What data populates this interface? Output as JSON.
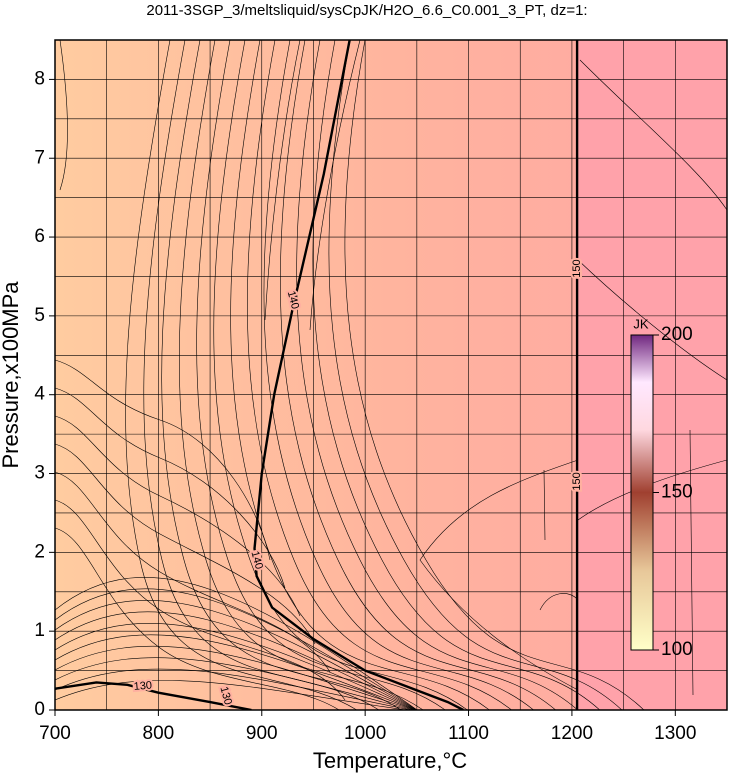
{
  "chart_data": {
    "type": "contour",
    "title": "2011-3SGP_3/meltsliquid/sysCpJK/H2O_6.6_C0.001_3_PT, dz=1:",
    "x_label": "Temperature,°C",
    "y_label": "Pressure,x100MPa",
    "xlim": [
      700,
      1350
    ],
    "ylim": [
      0,
      8.5
    ],
    "xticks": [
      700,
      800,
      900,
      1000,
      1100,
      1200,
      1300
    ],
    "yticks": [
      0,
      1,
      2,
      3,
      4,
      5,
      6,
      7,
      8
    ],
    "xgrid": [
      750,
      800,
      850,
      900,
      950,
      1000,
      1050,
      1100,
      1150,
      1200,
      1250,
      1300
    ],
    "ygrid": [
      0.5,
      1,
      1.5,
      2,
      2.5,
      3,
      3.5,
      4,
      4.5,
      5,
      5.5,
      6,
      6.5,
      7,
      7.5,
      8
    ],
    "contours": [
      {
        "level": 140,
        "x": [
          985,
          960,
          930,
          912,
          900,
          893,
          895,
          910,
          950,
          1000,
          1040,
          1080,
          1095
        ],
        "y": [
          8.5,
          6.8,
          5.1,
          4.0,
          3.0,
          2.05,
          1.7,
          1.3,
          0.9,
          0.5,
          0.3,
          0.1,
          0
        ],
        "label_x": [
          930,
          895
        ],
        "label_y": [
          5.2,
          1.9
        ]
      },
      {
        "level": 150,
        "x": [
          1205,
          1205
        ],
        "y": [
          0,
          8.5
        ],
        "label_x": [
          1205,
          1205
        ],
        "label_y": [
          5.6,
          2.9
        ]
      },
      {
        "level": 130,
        "x": [
          700,
          740,
          770,
          800,
          850,
          890
        ],
        "y": [
          0.27,
          0.35,
          0.32,
          0.22,
          0.1,
          0
        ],
        "label_x": [
          785,
          865
        ],
        "label_y": [
          0.3,
          0.18
        ]
      }
    ],
    "colorbar": {
      "label": "JK",
      "clim": [
        100,
        200
      ],
      "ticks": [
        100,
        150,
        200
      ]
    }
  }
}
